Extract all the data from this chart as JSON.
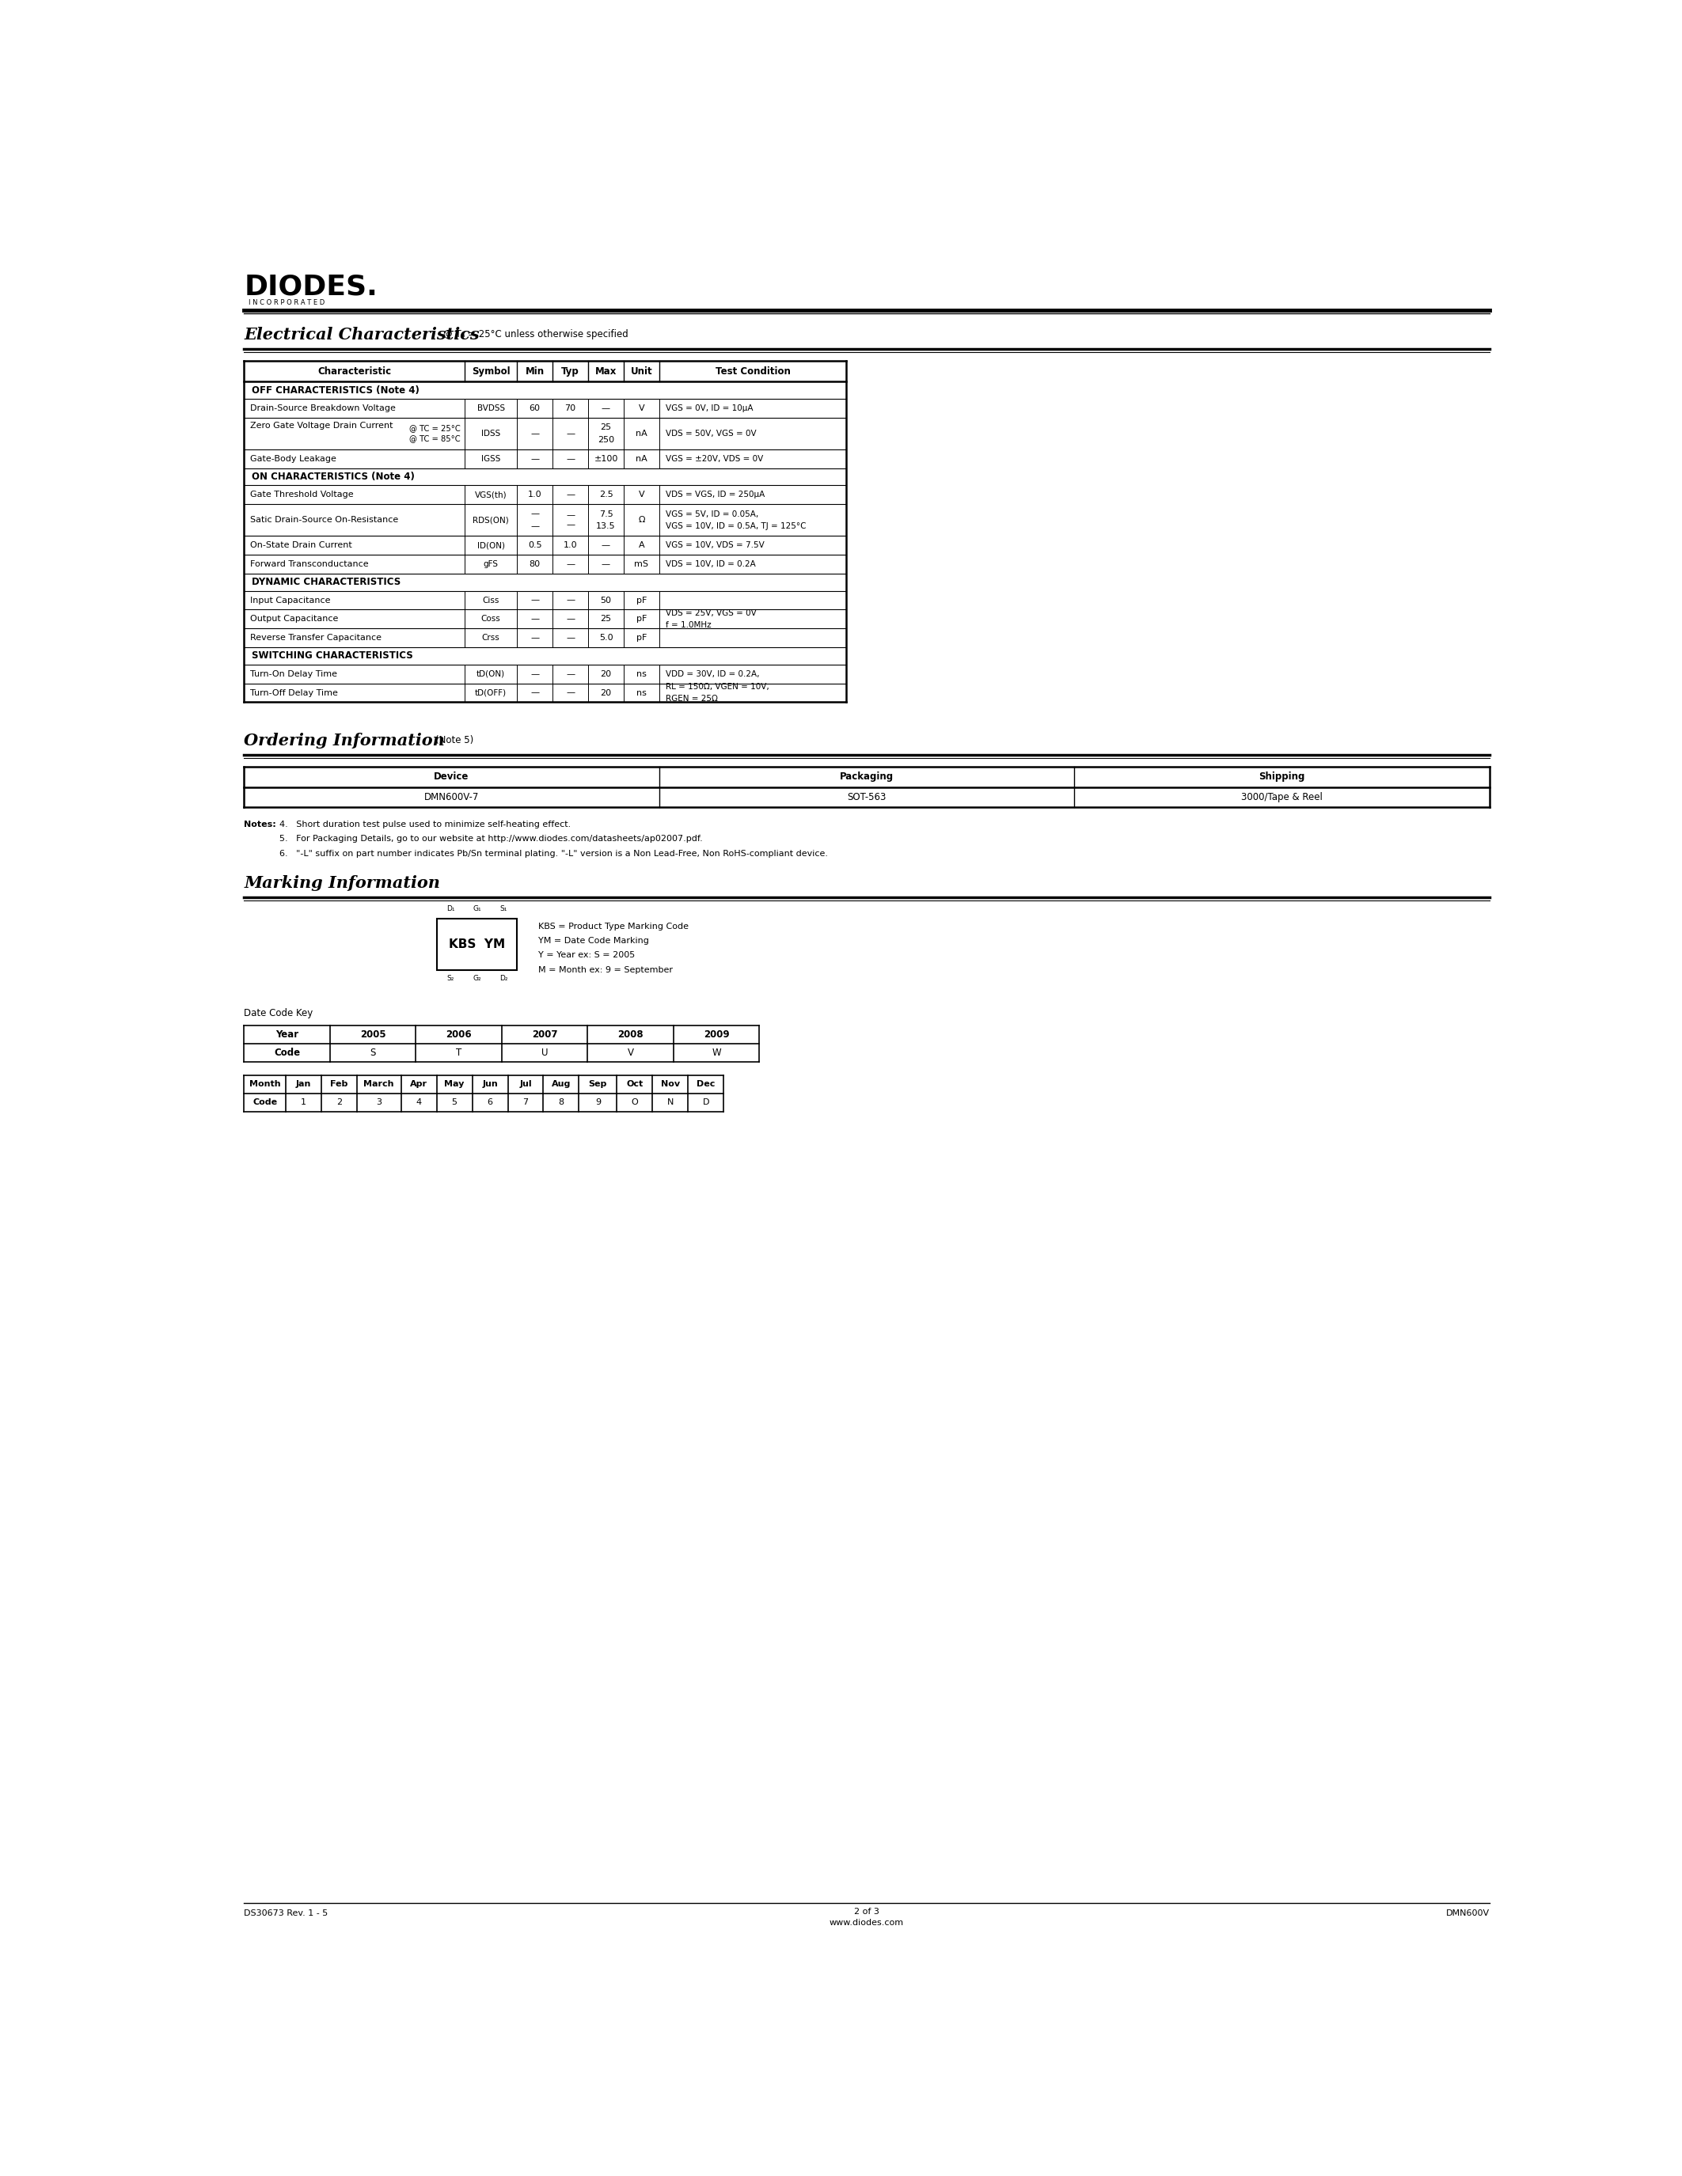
{
  "page_width": 21.25,
  "page_height": 27.5,
  "bg_color": "#ffffff",
  "text_color": "#000000",
  "ec_header": [
    "Characteristic",
    "Symbol",
    "Min",
    "Typ",
    "Max",
    "Unit",
    "Test Condition"
  ],
  "ec_rows": [
    {
      "type": "section",
      "label": "OFF CHARACTERISTICS (Note 4)",
      "char": "",
      "symbol_text": "",
      "min": "",
      "typ": "",
      "max": "",
      "unit": "",
      "test_text": ""
    },
    {
      "type": "data",
      "char": "Drain-Source Breakdown Voltage",
      "symbol_text": "BVDSS",
      "min": "60",
      "typ": "70",
      "max": "—",
      "unit": "V",
      "test_text": "VGS = 0V, ID = 10μA"
    },
    {
      "type": "data2",
      "char": "Zero Gate Voltage Drain Current",
      "char2a": "@ TC = 25°C",
      "char2b": "@ TC = 85°C",
      "symbol_text": "IDSS",
      "min": "—",
      "typ": "—",
      "max": "25\n250",
      "unit": "nA",
      "test_text": "VDS = 50V, VGS = 0V"
    },
    {
      "type": "data",
      "char": "Gate-Body Leakage",
      "symbol_text": "IGSS",
      "min": "—",
      "typ": "—",
      "max": "±100",
      "unit": "nA",
      "test_text": "VGS = ±20V, VDS = 0V"
    },
    {
      "type": "section",
      "label": "ON CHARACTERISTICS (Note 4)",
      "char": "",
      "symbol_text": "",
      "min": "",
      "typ": "",
      "max": "",
      "unit": "",
      "test_text": ""
    },
    {
      "type": "data",
      "char": "Gate Threshold Voltage",
      "symbol_text": "VGS(th)",
      "min": "1.0",
      "typ": "—",
      "max": "2.5",
      "unit": "V",
      "test_text": "VDS = VGS, ID = 250μA"
    },
    {
      "type": "data2b",
      "char": "Satic Drain-Source On-Resistance",
      "symbol_text": "RDS(ON)",
      "min": "—\n—",
      "typ": "—\n—",
      "max": "7.5\n13.5",
      "unit": "Ω",
      "test_text": "VGS = 5V, ID = 0.05A,\nVGS = 10V, ID = 0.5A, TJ = 125°C"
    },
    {
      "type": "data",
      "char": "On-State Drain Current",
      "symbol_text": "ID(ON)",
      "min": "0.5",
      "typ": "1.0",
      "max": "—",
      "unit": "A",
      "test_text": "VGS = 10V, VDS = 7.5V"
    },
    {
      "type": "data",
      "char": "Forward Transconductance",
      "symbol_text": "gFS",
      "min": "80",
      "typ": "—",
      "max": "—",
      "unit": "mS",
      "test_text": "VDS = 10V, ID = 0.2A"
    },
    {
      "type": "section",
      "label": "DYNAMIC CHARACTERISTICS",
      "char": "",
      "symbol_text": "",
      "min": "",
      "typ": "",
      "max": "",
      "unit": "",
      "test_text": ""
    },
    {
      "type": "data",
      "char": "Input Capacitance",
      "symbol_text": "Ciss",
      "min": "—",
      "typ": "—",
      "max": "50",
      "unit": "pF",
      "test_text": ""
    },
    {
      "type": "data",
      "char": "Output Capacitance",
      "symbol_text": "Coss",
      "min": "—",
      "typ": "—",
      "max": "25",
      "unit": "pF",
      "test_text": "VDS = 25V, VGS = 0V\nf = 1.0MHz"
    },
    {
      "type": "data",
      "char": "Reverse Transfer Capacitance",
      "symbol_text": "Crss",
      "min": "—",
      "typ": "—",
      "max": "5.0",
      "unit": "pF",
      "test_text": ""
    },
    {
      "type": "section",
      "label": "SWITCHING CHARACTERISTICS",
      "char": "",
      "symbol_text": "",
      "min": "",
      "typ": "",
      "max": "",
      "unit": "",
      "test_text": ""
    },
    {
      "type": "data",
      "char": "Turn-On Delay Time",
      "symbol_text": "tD(ON)",
      "min": "—",
      "typ": "—",
      "max": "20",
      "unit": "ns",
      "test_text": "VDD = 30V, ID = 0.2A,"
    },
    {
      "type": "data",
      "char": "Turn-Off Delay Time",
      "symbol_text": "tD(OFF)",
      "min": "—",
      "typ": "—",
      "max": "20",
      "unit": "ns",
      "test_text": "RL = 150Ω, VGEN = 10V,\nRGEN = 25Ω"
    }
  ],
  "oi_header": [
    "Device",
    "Packaging",
    "Shipping"
  ],
  "oi_rows": [
    [
      "DMN600V-7",
      "SOT-563",
      "3000/Tape & Reel"
    ]
  ],
  "notes": [
    "4.   Short duration test pulse used to minimize self-heating effect.",
    "5.   For Packaging Details, go to our website at http://www.diodes.com/datasheets/ap02007.pdf.",
    "6.   \"-L\" suffix on part number indicates Pb/Sn terminal plating. \"-L\" version is a Non Lead-Free, Non RoHS-compliant device."
  ],
  "marking_text": [
    "KBS = Product Type Marking Code",
    "YM = Date Code Marking",
    "Y = Year ex: S = 2005",
    "M = Month ex: 9 = September"
  ],
  "date_code_years": [
    "Year",
    "2005",
    "2006",
    "2007",
    "2008",
    "2009"
  ],
  "date_code_year_codes": [
    "Code",
    "S",
    "T",
    "U",
    "V",
    "W"
  ],
  "date_code_months": [
    "Month",
    "Jan",
    "Feb",
    "March",
    "Apr",
    "May",
    "Jun",
    "Jul",
    "Aug",
    "Sep",
    "Oct",
    "Nov",
    "Dec"
  ],
  "date_code_month_codes": [
    "Code",
    "1",
    "2",
    "3",
    "4",
    "5",
    "6",
    "7",
    "8",
    "9",
    "O",
    "N",
    "D"
  ],
  "footer_left": "DS30673 Rev. 1 - 5",
  "footer_center_line1": "2 of 3",
  "footer_center_line2": "www.diodes.com",
  "footer_right": "DMN600V"
}
